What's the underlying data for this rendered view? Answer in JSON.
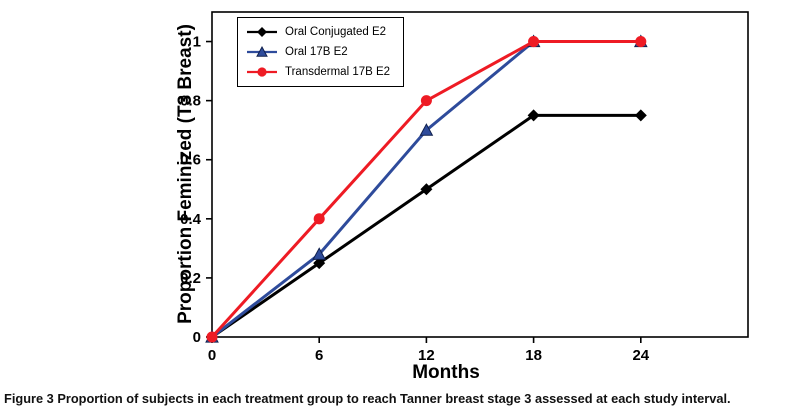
{
  "chart_data": {
    "type": "line",
    "xlabel": "Months",
    "ylabel": "Proportion Feminized (T3 Breast)",
    "x": [
      0,
      6,
      12,
      18,
      24
    ],
    "xticks": [
      0,
      6,
      12,
      18,
      24
    ],
    "yticks": [
      0,
      0.2,
      0.4,
      0.6,
      0.8,
      1
    ],
    "xlim": [
      0,
      30
    ],
    "ylim": [
      0,
      1.1
    ],
    "grid": false,
    "legend_position": "top-left-inside",
    "series": [
      {
        "name": "Oral Conjugated E2",
        "color": "#000000",
        "marker": "diamond",
        "values": [
          0,
          0.25,
          0.5,
          0.75,
          0.75
        ]
      },
      {
        "name": "Oral 17B E2",
        "color": "#2E4B9B",
        "marker": "triangle",
        "values": [
          0,
          0.28,
          0.7,
          1,
          1
        ]
      },
      {
        "name": "Transdermal 17B E2",
        "color": "#EE1B24",
        "marker": "circle",
        "values": [
          0,
          0.4,
          0.8,
          1,
          1
        ]
      }
    ]
  },
  "caption": {
    "label": "Figure 3",
    "text": "Proportion of subjects in each treatment group to reach Tanner breast stage 3 assessed at each study interval."
  }
}
